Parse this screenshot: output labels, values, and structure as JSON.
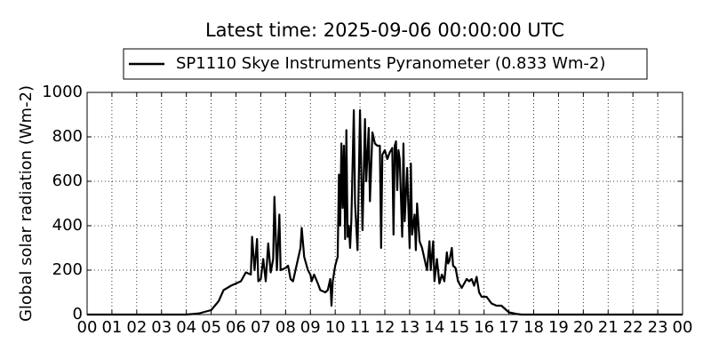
{
  "chart_data": {
    "type": "line",
    "title": "Latest time: 2025-09-06 00:00:00 UTC",
    "y_label": "Global solar radiation (Wm-2)",
    "grid": true,
    "legend_position": "top",
    "xlim": [
      0,
      24
    ],
    "ylim": [
      0,
      1000
    ],
    "yticks": [
      0,
      200,
      400,
      600,
      800,
      {
        "value": 1000,
        "label": "1000"
      }
    ],
    "xticks": [
      {
        "value": 0,
        "label": "00"
      },
      {
        "value": 1,
        "label": "01"
      },
      {
        "value": 2,
        "label": "02"
      },
      {
        "value": 3,
        "label": "03"
      },
      {
        "value": 4,
        "label": "04"
      },
      {
        "value": 5,
        "label": "05"
      },
      {
        "value": 6,
        "label": "06"
      },
      {
        "value": 7,
        "label": "07"
      },
      {
        "value": 8,
        "label": "08"
      },
      {
        "value": 9,
        "label": "09"
      },
      {
        "value": 10,
        "label": "10"
      },
      {
        "value": 11,
        "label": "11"
      },
      {
        "value": 12,
        "label": "12"
      },
      {
        "value": 13,
        "label": "13"
      },
      {
        "value": 14,
        "label": "14"
      },
      {
        "value": 15,
        "label": "15"
      },
      {
        "value": 16,
        "label": "16"
      },
      {
        "value": 17,
        "label": "17"
      },
      {
        "value": 18,
        "label": "18"
      },
      {
        "value": 19,
        "label": "19"
      },
      {
        "value": 20,
        "label": "20"
      },
      {
        "value": 21,
        "label": "21"
      },
      {
        "value": 22,
        "label": "22"
      },
      {
        "value": 23,
        "label": "23"
      },
      {
        "value": 24,
        "label": "00"
      }
    ],
    "x": [
      0,
      4,
      4.5,
      5,
      5.3,
      5.5,
      5.8,
      6,
      6.2,
      6.4,
      6.6,
      6.65,
      6.75,
      6.85,
      6.9,
      7,
      7.1,
      7.2,
      7.3,
      7.4,
      7.5,
      7.55,
      7.65,
      7.75,
      7.8,
      8,
      8.1,
      8.2,
      8.3,
      8.5,
      8.6,
      8.65,
      8.75,
      8.9,
      9,
      9.05,
      9.15,
      9.3,
      9.4,
      9.6,
      9.7,
      9.8,
      9.85,
      9.9,
      10,
      10.1,
      10.15,
      10.2,
      10.25,
      10.3,
      10.35,
      10.4,
      10.45,
      10.5,
      10.55,
      10.6,
      10.65,
      10.75,
      10.8,
      10.9,
      11,
      11.1,
      11.2,
      11.25,
      11.35,
      11.4,
      11.5,
      11.6,
      11.7,
      11.8,
      11.85,
      11.9,
      12,
      12.1,
      12.2,
      12.3,
      12.35,
      12.4,
      12.45,
      12.5,
      12.55,
      12.6,
      12.7,
      12.75,
      12.8,
      12.9,
      13,
      13.05,
      13.1,
      13.2,
      13.25,
      13.3,
      13.4,
      13.5,
      13.6,
      13.7,
      13.8,
      13.85,
      13.95,
      14,
      14.1,
      14.2,
      14.3,
      14.4,
      14.5,
      14.55,
      14.6,
      14.7,
      14.75,
      14.85,
      14.95,
      15.1,
      15.3,
      15.4,
      15.5,
      15.6,
      15.7,
      15.8,
      15.9,
      16.1,
      16.3,
      16.5,
      16.7,
      16.8,
      17,
      17.3,
      17.5,
      24
    ],
    "series": [
      {
        "name": "SP1110 Skye Instruments Pyranometer (0.833 Wm-2)",
        "color": "#000000",
        "values": [
          0,
          0,
          5,
          20,
          60,
          110,
          130,
          140,
          150,
          190,
          180,
          350,
          200,
          340,
          150,
          160,
          250,
          150,
          320,
          190,
          250,
          530,
          200,
          450,
          200,
          210,
          220,
          160,
          150,
          250,
          300,
          390,
          260,
          200,
          180,
          150,
          180,
          140,
          110,
          100,
          110,
          160,
          40,
          150,
          220,
          260,
          630,
          400,
          770,
          480,
          760,
          340,
          830,
          350,
          400,
          300,
          420,
          920,
          500,
          290,
          920,
          380,
          880,
          600,
          840,
          510,
          820,
          770,
          760,
          760,
          300,
          720,
          740,
          700,
          730,
          750,
          360,
          760,
          780,
          560,
          740,
          700,
          350,
          770,
          420,
          660,
          300,
          680,
          360,
          450,
          290,
          500,
          330,
          300,
          250,
          200,
          330,
          200,
          330,
          150,
          250,
          140,
          180,
          150,
          280,
          230,
          240,
          300,
          220,
          210,
          150,
          120,
          160,
          150,
          160,
          130,
          170,
          100,
          80,
          80,
          50,
          40,
          40,
          30,
          10,
          3,
          0,
          0
        ]
      }
    ]
  }
}
